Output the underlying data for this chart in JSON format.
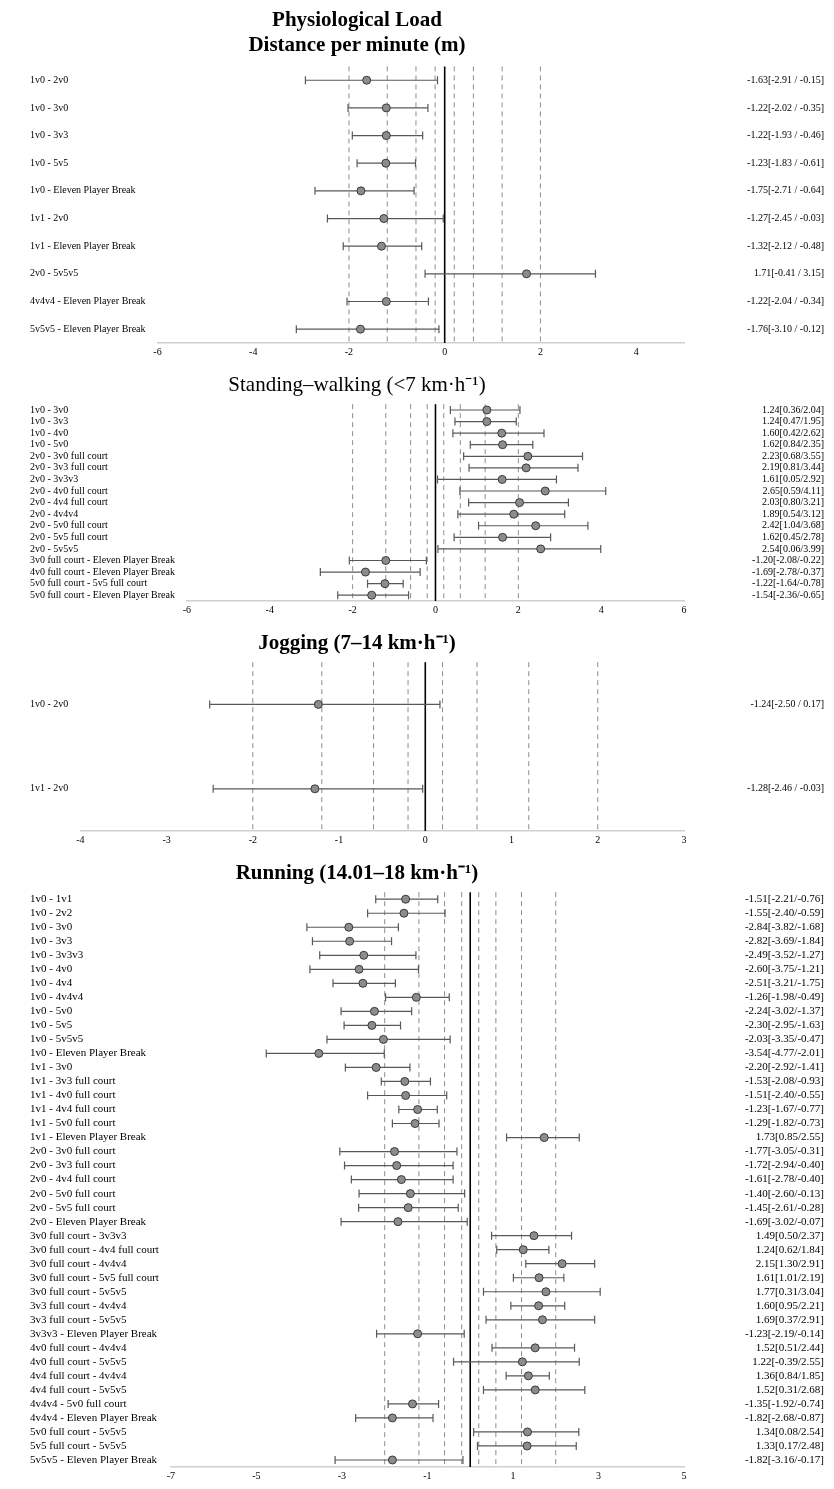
{
  "chart_data": [
    {
      "type": "scatter",
      "orientation": "horizontal",
      "title": "Physiological Load",
      "subtitle": "Distance per minute (m)",
      "color": "#8c8c8c",
      "marker": "circle",
      "legend": false,
      "grid": false,
      "categories": [
        "1v0 - 2v0",
        "1v0 - 3v0",
        "1v0 - 3v3",
        "1v0 - 5v5",
        "1v0 - Eleven Player Break",
        "1v1 - 2v0",
        "1v1 - Eleven Player Break",
        "2v0 - 5v5v5",
        "4v4v4 - Eleven Player Break",
        "5v5v5 - Eleven Player Break"
      ],
      "values": [
        -1.63,
        -1.22,
        -1.22,
        -1.23,
        -1.75,
        -1.27,
        -1.32,
        1.71,
        -1.22,
        -1.76
      ],
      "errors": [
        [
          -2.91,
          -0.15
        ],
        [
          -2.02,
          -0.35
        ],
        [
          -1.93,
          -0.46
        ],
        [
          -1.83,
          -0.61
        ],
        [
          -2.71,
          -0.64
        ],
        [
          -2.45,
          -0.03
        ],
        [
          -2.12,
          -0.48
        ],
        [
          -0.41,
          3.15
        ],
        [
          -2.04,
          -0.34
        ],
        [
          -3.1,
          -0.12
        ]
      ],
      "value_labels": [
        "-1.63[-2.91 / -0.15]",
        "-1.22[-2.02 / -0.35]",
        "-1.22[-1.93 / -0.46]",
        "-1.23[-1.83 / -0.61]",
        "-1.75[-2.71 / -0.64]",
        "-1.27[-2.45 / -0.03]",
        "-1.32[-2.12 / -0.48]",
        "1.71[-0.41 / 3.15]",
        "-1.22[-2.04 / -0.34]",
        "-1.76[-3.10 / -0.12]"
      ],
      "xlim": [
        -6,
        5
      ],
      "xticks": [
        -6,
        -4,
        -2,
        0,
        2,
        4
      ],
      "ref_lines": [
        {
          "axis": "x",
          "value": 0,
          "line_style": "solid",
          "color": "#000000"
        },
        {
          "axis": "x",
          "value": -2,
          "line_style": "dashed",
          "color": "#8c8c8c"
        },
        {
          "axis": "x",
          "value": -1.2,
          "line_style": "dashed",
          "color": "#8c8c8c"
        },
        {
          "axis": "x",
          "value": -0.6,
          "line_style": "dashed",
          "color": "#8c8c8c"
        },
        {
          "axis": "x",
          "value": -0.2,
          "line_style": "dashed",
          "color": "#8c8c8c"
        },
        {
          "axis": "x",
          "value": 0.2,
          "line_style": "dashed",
          "color": "#8c8c8c"
        },
        {
          "axis": "x",
          "value": 0.6,
          "line_style": "dashed",
          "color": "#8c8c8c"
        },
        {
          "axis": "x",
          "value": 1.2,
          "line_style": "dashed",
          "color": "#8c8c8c"
        },
        {
          "axis": "x",
          "value": 2,
          "line_style": "dashed",
          "color": "#8c8c8c"
        }
      ]
    },
    {
      "type": "scatter",
      "orientation": "horizontal",
      "title": "Standing–walking (<7 km·h⁻¹)",
      "color": "#8c8c8c",
      "marker": "circle",
      "legend": false,
      "grid": false,
      "categories": [
        "1v0 - 3v0",
        "1v0 - 3v3",
        "1v0 - 4v0",
        "1v0 - 5v0",
        "2v0 - 3v0 full court",
        "2v0 - 3v3 full court",
        "2v0 - 3v3v3",
        "2v0 - 4v0 full court",
        "2v0 - 4v4 full court",
        "2v0 - 4v4v4",
        "2v0 - 5v0 full court",
        "2v0 - 5v5 full court",
        "2v0 - 5v5v5",
        "3v0 full court - Eleven Player Break",
        "4v0 full court - Eleven Player Break",
        "5v0 full court - 5v5 full court",
        "5v0 full court - Eleven Player Break"
      ],
      "values": [
        1.24,
        1.24,
        1.6,
        1.62,
        2.23,
        2.19,
        1.61,
        2.65,
        2.03,
        1.89,
        2.42,
        1.62,
        2.54,
        -1.2,
        -1.69,
        -1.22,
        -1.54
      ],
      "errors": [
        [
          0.36,
          2.04
        ],
        [
          0.47,
          1.95
        ],
        [
          0.42,
          2.62
        ],
        [
          0.84,
          2.35
        ],
        [
          0.68,
          3.55
        ],
        [
          0.81,
          3.44
        ],
        [
          0.05,
          2.92
        ],
        [
          0.59,
          4.11
        ],
        [
          0.8,
          3.21
        ],
        [
          0.54,
          3.12
        ],
        [
          1.04,
          3.68
        ],
        [
          0.45,
          2.78
        ],
        [
          0.06,
          3.99
        ],
        [
          -2.08,
          -0.22
        ],
        [
          -2.78,
          -0.37
        ],
        [
          -1.64,
          -0.78
        ],
        [
          -2.36,
          -0.65
        ]
      ],
      "value_labels": [
        "1.24[0.36/2.04]",
        "1.24[0.47/1.95]",
        "1.60[0.42/2.62]",
        "1.62[0.84/2.35]",
        "2.23[0.68/3.55]",
        "2.19[0.81/3.44]",
        "1.61[0.05/2.92]",
        "2.65[0.59/4.11]",
        "2.03[0.80/3.21]",
        "1.89[0.54/3.12]",
        "2.42[1.04/3.68]",
        "1.62[0.45/2.78]",
        "2.54[0.06/3.99]",
        "-1.20[-2.08/-0.22]",
        "-1.69[-2.78/-0.37]",
        "-1.22[-1.64/-0.78]",
        "-1.54[-2.36/-0.65]"
      ],
      "xlim": [
        -6,
        6
      ],
      "xticks": [
        -6,
        -4,
        -2,
        0,
        2,
        4,
        6
      ],
      "ref_lines": [
        {
          "axis": "x",
          "value": 0,
          "line_style": "solid",
          "color": "#000000"
        },
        {
          "axis": "x",
          "value": -2,
          "line_style": "dashed",
          "color": "#8c8c8c"
        },
        {
          "axis": "x",
          "value": -1.2,
          "line_style": "dashed",
          "color": "#8c8c8c"
        },
        {
          "axis": "x",
          "value": -0.6,
          "line_style": "dashed",
          "color": "#8c8c8c"
        },
        {
          "axis": "x",
          "value": -0.2,
          "line_style": "dashed",
          "color": "#8c8c8c"
        },
        {
          "axis": "x",
          "value": 0.2,
          "line_style": "dashed",
          "color": "#8c8c8c"
        },
        {
          "axis": "x",
          "value": 0.6,
          "line_style": "dashed",
          "color": "#8c8c8c"
        },
        {
          "axis": "x",
          "value": 1.2,
          "line_style": "dashed",
          "color": "#8c8c8c"
        },
        {
          "axis": "x",
          "value": 2,
          "line_style": "dashed",
          "color": "#8c8c8c"
        }
      ]
    },
    {
      "type": "scatter",
      "orientation": "horizontal",
      "title": "Jogging (7–14 km·h⁻¹)",
      "color": "#8c8c8c",
      "marker": "circle",
      "legend": false,
      "grid": false,
      "categories": [
        "1v0 - 2v0",
        "1v1 - 2v0"
      ],
      "values": [
        -1.24,
        -1.28
      ],
      "errors": [
        [
          -2.5,
          0.17
        ],
        [
          -2.46,
          -0.03
        ]
      ],
      "value_labels": [
        "-1.24[-2.50 / 0.17]",
        "-1.28[-2.46 / -0.03]"
      ],
      "xlim": [
        -4,
        3
      ],
      "xticks": [
        -4,
        -3,
        -2,
        -1,
        0,
        1,
        2,
        3
      ],
      "ref_lines": [
        {
          "axis": "x",
          "value": 0,
          "line_style": "solid",
          "color": "#000000"
        },
        {
          "axis": "x",
          "value": -2,
          "line_style": "dashed",
          "color": "#8c8c8c"
        },
        {
          "axis": "x",
          "value": -1.2,
          "line_style": "dashed",
          "color": "#8c8c8c"
        },
        {
          "axis": "x",
          "value": -0.6,
          "line_style": "dashed",
          "color": "#8c8c8c"
        },
        {
          "axis": "x",
          "value": -0.2,
          "line_style": "dashed",
          "color": "#8c8c8c"
        },
        {
          "axis": "x",
          "value": 0.2,
          "line_style": "dashed",
          "color": "#8c8c8c"
        },
        {
          "axis": "x",
          "value": 0.6,
          "line_style": "dashed",
          "color": "#8c8c8c"
        },
        {
          "axis": "x",
          "value": 1.2,
          "line_style": "dashed",
          "color": "#8c8c8c"
        },
        {
          "axis": "x",
          "value": 2,
          "line_style": "dashed",
          "color": "#8c8c8c"
        }
      ]
    },
    {
      "type": "scatter",
      "orientation": "horizontal",
      "title": "Running (14.01–18 km·h⁻¹)",
      "color": "#8c8c8c",
      "marker": "circle",
      "legend": false,
      "grid": false,
      "categories": [
        "1v0 - 1v1",
        "1v0 - 2v2",
        "1v0 - 3v0",
        "1v0 - 3v3",
        "1v0 - 3v3v3",
        "1v0 - 4v0",
        "1v0 - 4v4",
        "1v0 - 4v4v4",
        "1v0 - 5v0",
        "1v0 - 5v5",
        "1v0 - 5v5v5",
        "1v0 - Eleven Player Break",
        "1v1 - 3v0",
        "1v1 - 3v3 full court",
        "1v1 - 4v0 full court",
        "1v1 - 4v4 full court",
        "1v1 - 5v0 full court",
        "1v1 - Eleven Player Break",
        "2v0 - 3v0 full court",
        "2v0 - 3v3 full court",
        "2v0 - 4v4 full court",
        "2v0 - 5v0 full court",
        "2v0 - 5v5 full court",
        "2v0 - Eleven Player Break",
        "3v0 full court - 3v3v3",
        "3v0 full court - 4v4 full court",
        "3v0 full court - 4v4v4",
        "3v0 full court - 5v5 full court",
        "3v0 full court - 5v5v5",
        "3v3 full court - 4v4v4",
        "3v3 full court - 5v5v5",
        "3v3v3 - Eleven Player Break",
        "4v0 full court - 4v4v4",
        "4v0 full court - 5v5v5",
        "4v4 full court - 4v4v4",
        "4v4 full court - 5v5v5",
        "4v4v4 - 5v0 full court",
        "4v4v4 - Eleven Player Break",
        "5v0 full court - 5v5v5",
        "5v5 full court - 5v5v5",
        "5v5v5 - Eleven Player Break"
      ],
      "values": [
        -1.51,
        -1.55,
        -2.84,
        -2.82,
        -2.49,
        -2.6,
        -2.51,
        -1.26,
        -2.24,
        -2.3,
        -2.03,
        -3.54,
        -2.2,
        -1.53,
        -1.51,
        -1.23,
        -1.29,
        1.73,
        -1.77,
        -1.72,
        -1.61,
        -1.4,
        -1.45,
        -1.69,
        1.49,
        1.24,
        2.15,
        1.61,
        1.77,
        1.6,
        1.69,
        -1.23,
        1.52,
        1.22,
        1.36,
        1.52,
        -1.35,
        -1.82,
        1.34,
        1.33,
        -1.82
      ],
      "errors": [
        [
          -2.21,
          -0.76
        ],
        [
          -2.4,
          -0.59
        ],
        [
          -3.82,
          -1.68
        ],
        [
          -3.69,
          -1.84
        ],
        [
          -3.52,
          -1.27
        ],
        [
          -3.75,
          -1.21
        ],
        [
          -3.21,
          -1.75
        ],
        [
          -1.98,
          -0.49
        ],
        [
          -3.02,
          -1.37
        ],
        [
          -2.95,
          -1.63
        ],
        [
          -3.35,
          -0.47
        ],
        [
          -4.77,
          -2.01
        ],
        [
          -2.92,
          -1.41
        ],
        [
          -2.08,
          -0.93
        ],
        [
          -2.4,
          -0.55
        ],
        [
          -1.67,
          -0.77
        ],
        [
          -1.82,
          -0.73
        ],
        [
          0.85,
          2.55
        ],
        [
          -3.05,
          -0.31
        ],
        [
          -2.94,
          -0.4
        ],
        [
          -2.78,
          -0.4
        ],
        [
          -2.6,
          -0.13
        ],
        [
          -2.61,
          -0.28
        ],
        [
          -3.02,
          -0.07
        ],
        [
          0.5,
          2.37
        ],
        [
          0.62,
          1.84
        ],
        [
          1.3,
          2.91
        ],
        [
          1.01,
          2.19
        ],
        [
          0.31,
          3.04
        ],
        [
          0.95,
          2.21
        ],
        [
          0.37,
          2.91
        ],
        [
          -2.19,
          -0.14
        ],
        [
          0.51,
          2.44
        ],
        [
          -0.39,
          2.55
        ],
        [
          0.84,
          1.85
        ],
        [
          0.31,
          2.68
        ],
        [
          -1.92,
          -0.74
        ],
        [
          -2.68,
          -0.87
        ],
        [
          0.08,
          2.54
        ],
        [
          0.17,
          2.48
        ],
        [
          -3.16,
          -0.17
        ]
      ],
      "value_labels": [
        "-1.51[-2.21/-0.76]",
        "-1.55[-2.40/-0.59]",
        "-2.84[-3.82/-1.68]",
        "-2.82[-3.69/-1.84]",
        "-2.49[-3.52/-1.27]",
        "-2.60[-3.75/-1.21]",
        "-2.51[-3.21/-1.75]",
        "-1.26[-1.98/-0.49]",
        "-2.24[-3.02/-1.37]",
        "-2.30[-2.95/-1.63]",
        "-2.03[-3.35/-0.47]",
        "-3.54[-4.77/-2.01]",
        "-2.20[-2.92/-1.41]",
        "-1.53[-2.08/-0.93]",
        "-1.51[-2.40/-0.55]",
        "-1.23[-1.67/-0.77]",
        "-1.29[-1.82/-0.73]",
        "1.73[0.85/2.55]",
        "-1.77[-3.05/-0.31]",
        "-1.72[-2.94/-0.40]",
        "-1.61[-2.78/-0.40]",
        "-1.40[-2.60/-0.13]",
        "-1.45[-2.61/-0.28]",
        "-1.69[-3.02/-0.07]",
        "1.49[0.50/2.37]",
        "1.24[0.62/1.84]",
        "2.15[1.30/2.91]",
        "1.61[1.01/2.19]",
        "1.77[0.31/3.04]",
        "1.60[0.95/2.21]",
        "1.69[0.37/2.91]",
        "-1.23[-2.19/-0.14]",
        "1.52[0.51/2.44]",
        "1.22[-0.39/2.55]",
        "1.36[0.84/1.85]",
        "1.52[0.31/2.68]",
        "-1.35[-1.92/-0.74]",
        "-1.82[-2.68/-0.87]",
        "1.34[0.08/2.54]",
        "1.33[0.17/2.48]",
        "-1.82[-3.16/-0.17]"
      ],
      "xlim": [
        -7,
        5
      ],
      "xticks": [
        -7,
        -5,
        -3,
        -1,
        1,
        3,
        5
      ],
      "ref_lines": [
        {
          "axis": "x",
          "value": 0,
          "line_style": "solid",
          "color": "#000000"
        },
        {
          "axis": "x",
          "value": -2,
          "line_style": "dashed",
          "color": "#8c8c8c"
        },
        {
          "axis": "x",
          "value": -1.2,
          "line_style": "dashed",
          "color": "#8c8c8c"
        },
        {
          "axis": "x",
          "value": -0.6,
          "line_style": "dashed",
          "color": "#8c8c8c"
        },
        {
          "axis": "x",
          "value": -0.2,
          "line_style": "dashed",
          "color": "#8c8c8c"
        },
        {
          "axis": "x",
          "value": 0.2,
          "line_style": "dashed",
          "color": "#8c8c8c"
        },
        {
          "axis": "x",
          "value": 0.6,
          "line_style": "dashed",
          "color": "#8c8c8c"
        },
        {
          "axis": "x",
          "value": 1.2,
          "line_style": "dashed",
          "color": "#8c8c8c"
        },
        {
          "axis": "x",
          "value": 2,
          "line_style": "dashed",
          "color": "#8c8c8c"
        }
      ]
    }
  ]
}
